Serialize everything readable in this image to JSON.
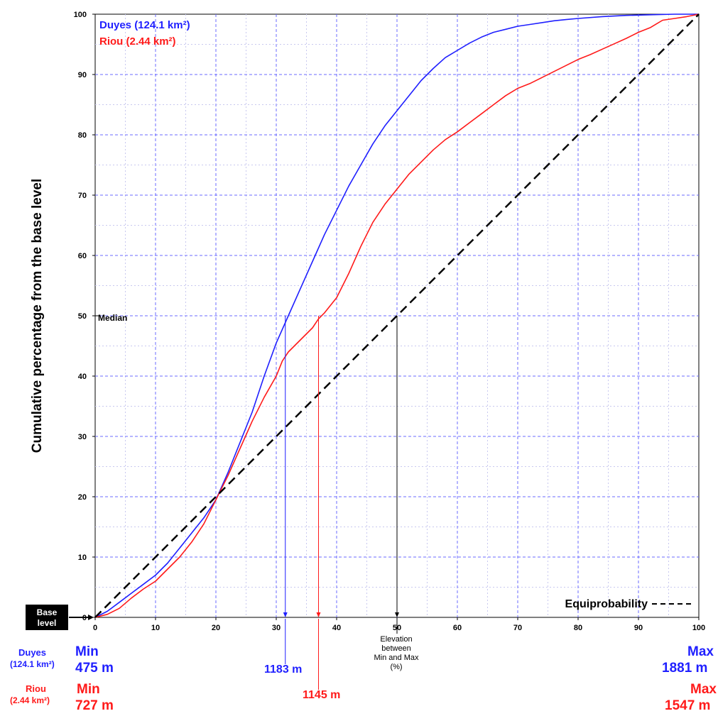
{
  "chart_data": {
    "type": "line",
    "ylabel": "Cumulative percentage from the base level",
    "xlabel": "Elevation between Min and Max (%)",
    "xlabel_lines": [
      "Elevation",
      "between",
      "Min and Max",
      "(%)"
    ],
    "xlim": [
      0,
      100
    ],
    "ylim": [
      0,
      100
    ],
    "xticks": [
      0,
      10,
      20,
      30,
      40,
      50,
      60,
      70,
      80,
      90,
      100
    ],
    "yticks": [
      0,
      10,
      20,
      30,
      40,
      50,
      60,
      70,
      80,
      90,
      100
    ],
    "grid": true,
    "legend_placement": "top-left",
    "series": [
      {
        "name": "Duyes (124.1 km²)",
        "color": "#1f1fff",
        "x": [
          0,
          2,
          4,
          6,
          8,
          10,
          12,
          14,
          16,
          18,
          20,
          22,
          24,
          26,
          28,
          30,
          32,
          34,
          36,
          38,
          40,
          42,
          44,
          46,
          48,
          50,
          52,
          54,
          56,
          58,
          60,
          62,
          64,
          66,
          68,
          70,
          72,
          74,
          76,
          78,
          80,
          84,
          88,
          92,
          96,
          100
        ],
        "y": [
          0,
          1,
          2.5,
          4,
          5.5,
          7,
          9,
          11.5,
          14,
          16.5,
          19.5,
          24,
          29,
          34,
          40,
          45.5,
          50,
          54.5,
          59,
          63.5,
          67.5,
          71.5,
          75,
          78.5,
          81.5,
          84,
          86.5,
          89,
          91,
          92.8,
          94,
          95.2,
          96.2,
          97,
          97.5,
          98,
          98.3,
          98.6,
          98.9,
          99.1,
          99.3,
          99.6,
          99.8,
          99.9,
          100,
          100
        ]
      },
      {
        "name": "Riou (2.44 km²)",
        "color": "#ff1a1a",
        "x": [
          0,
          2,
          4,
          6,
          8,
          10,
          12,
          14,
          16,
          18,
          20,
          22,
          24,
          26,
          28,
          30,
          31,
          32,
          34,
          36,
          37,
          38,
          40,
          42,
          44,
          46,
          48,
          50,
          52,
          54,
          56,
          58,
          60,
          62,
          64,
          66,
          68,
          70,
          72,
          74,
          76,
          78,
          80,
          82,
          84,
          86,
          88,
          90,
          92,
          93,
          94,
          96,
          98,
          100
        ],
        "y": [
          0,
          0.5,
          1.5,
          3.2,
          4.7,
          6,
          8,
          10,
          12.5,
          15.5,
          19.5,
          23.5,
          28,
          32.5,
          36.5,
          40,
          42.5,
          44,
          46,
          48,
          49.5,
          50.5,
          53,
          57,
          61.5,
          65.5,
          68.5,
          71,
          73.5,
          75.5,
          77.5,
          79.2,
          80.5,
          82,
          83.5,
          85,
          86.5,
          87.7,
          88.5,
          89.5,
          90.5,
          91.5,
          92.5,
          93.3,
          94.2,
          95.1,
          96,
          97,
          97.8,
          98.4,
          99,
          99.3,
          99.6,
          100
        ]
      },
      {
        "name": "Equiprobability",
        "color": "#000000",
        "dashed": true,
        "x": [
          0,
          100
        ],
        "y": [
          0,
          100
        ]
      }
    ],
    "median": {
      "label": "Median",
      "y": 50,
      "markers": [
        {
          "x": 31.5,
          "color": "#1f1fff",
          "label": "1183 m"
        },
        {
          "x": 37,
          "color": "#ff1a1a",
          "label": "1145 m"
        },
        {
          "x": 50,
          "color": "#000000",
          "label": ""
        }
      ]
    },
    "annotations": {
      "base_level": [
        "Base",
        "level"
      ],
      "equiprobability_label": "Equiprobability",
      "duyes": {
        "name": "Duyes",
        "area": "(124.1 km²)",
        "min_label": "Min",
        "min_value": "475 m",
        "max_label": "Max",
        "max_value": "1881 m"
      },
      "riou": {
        "name": "Riou",
        "area": "(2.44 km²)",
        "min_label": "Min",
        "min_value": "727 m",
        "max_label": "Max",
        "max_value": "1547 m"
      }
    }
  }
}
